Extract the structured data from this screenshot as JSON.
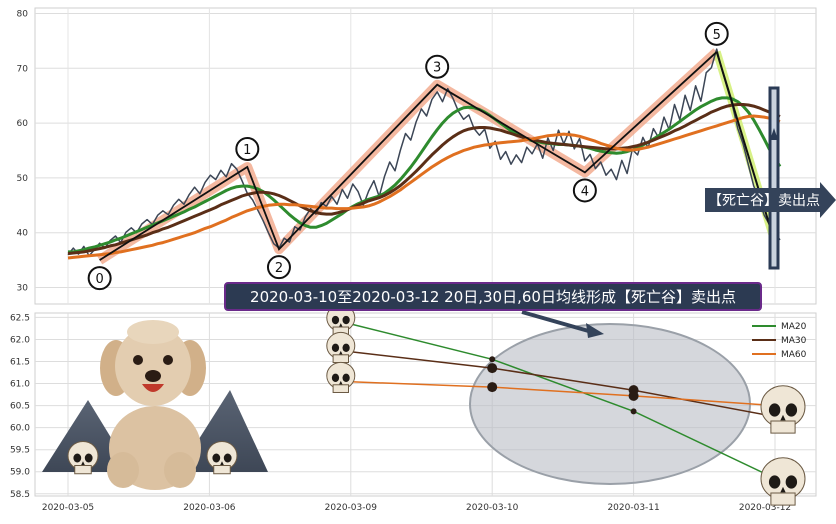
{
  "chart_data": [
    {
      "type": "line",
      "panel": "top",
      "title": "",
      "xlabel": "",
      "ylabel": "",
      "ylim": [
        27,
        81
      ],
      "yticks": [
        30,
        40,
        50,
        60,
        70,
        80
      ],
      "grid": true,
      "series": [
        {
          "values": [
            36,
            37.2,
            36.1,
            37.5,
            35.8,
            36.9,
            38.1,
            37.2,
            38.6,
            39.4,
            38.2,
            40.1,
            40.9,
            40,
            41.6,
            42.4,
            41.5,
            43.2,
            44,
            43.3,
            45,
            46.1,
            45.2,
            47,
            48.3,
            47.1,
            49.2,
            50.5,
            49.7,
            51.4,
            50.2,
            52.6,
            51.6,
            49.5,
            47.2,
            46,
            44.1,
            42.2,
            40,
            38,
            37.2,
            39,
            38.3,
            41.1,
            40.5,
            42.9,
            44.4,
            43.4,
            45.5,
            44.8,
            46.6,
            45.2,
            47.9,
            46.3,
            48.9,
            47.5,
            45,
            47.6,
            49.5,
            46.6,
            50.2,
            52.9,
            51.3,
            55,
            58.1,
            56.9,
            60.2,
            62.6,
            61.3,
            64.3,
            65.7,
            63.9,
            66.3,
            64.5,
            62.2,
            60.7,
            61.5,
            59,
            57.8,
            58.9,
            55.4,
            56.7,
            53.4,
            54.8,
            52.5,
            54.2,
            52.8,
            55.6,
            54.4,
            56.2,
            53.6,
            57.3,
            55,
            58.7,
            56.2,
            58.5,
            55.3,
            57.2,
            53.1,
            54.3,
            51.7,
            52.9,
            50.5,
            51.6,
            49.7,
            53.2,
            50.8,
            55.2,
            54.2,
            57.4,
            55.5,
            59,
            57.3,
            61.1,
            58.8,
            63.4,
            60.6,
            65.1,
            62.3,
            66.8,
            64,
            69.2,
            70.1,
            73.5,
            69.7,
            66.4,
            63.2,
            59,
            56.2,
            52.4,
            48.6,
            46.1,
            43.2,
            41.5,
            40.1,
            38.7
          ]
        },
        {
          "name": "MA20",
          "values": [
            36.5,
            36.5,
            36.7,
            36.9,
            37.2,
            37.4,
            37.7,
            38,
            38.3,
            38.7,
            39,
            39.4,
            39.8,
            40.2,
            40.6,
            41,
            41.4,
            41.8,
            42.2,
            42.6,
            43,
            43.4,
            43.8,
            44.3,
            44.7,
            45.2,
            45.7,
            46.2,
            46.7,
            47.2,
            47.7,
            48.1,
            48.4,
            48.5,
            48.5,
            48.3,
            48,
            47.5,
            46.8,
            46,
            45.1,
            44.2,
            43.3,
            42.5,
            41.8,
            41.3,
            41,
            41,
            41.3,
            41.7,
            42.3,
            42.9,
            43.5,
            44.2,
            44.8,
            45.3,
            45.7,
            46.1,
            46.4,
            46.7,
            47.2,
            47.9,
            48.7,
            49.7,
            50.8,
            52,
            53.3,
            54.7,
            56.1,
            57.5,
            58.8,
            60,
            61,
            61.8,
            62.4,
            62.8,
            62.9,
            62.8,
            62.5,
            62,
            61.4,
            60.7,
            60,
            59.3,
            58.6,
            58,
            57.5,
            57.1,
            56.8,
            56.6,
            56.4,
            56.3,
            56.2,
            56.1,
            56.1,
            56,
            55.9,
            55.8,
            55.6,
            55.4,
            55.1,
            54.9,
            54.7,
            54.6,
            54.5,
            54.6,
            54.8,
            55.1,
            55.5,
            56,
            56.5,
            57.1,
            57.7,
            58.3,
            58.9,
            59.6,
            60.3,
            61,
            61.7,
            62.4,
            63,
            63.5,
            64,
            64.4,
            64.6,
            64.6,
            64.4,
            63.9,
            63.1,
            62,
            60.6,
            58.9,
            57.1,
            55.2,
            53.6,
            52.1
          ]
        },
        {
          "name": "MA30",
          "values": [
            36.2,
            36.3,
            36.4,
            36.5,
            36.7,
            36.9,
            37.1,
            37.3,
            37.6,
            37.8,
            38.1,
            38.4,
            38.7,
            39,
            39.3,
            39.6,
            40,
            40.3,
            40.7,
            41,
            41.4,
            41.8,
            42.2,
            42.6,
            43,
            43.4,
            43.8,
            44.2,
            44.6,
            45.1,
            45.5,
            45.9,
            46.3,
            46.7,
            47,
            47.2,
            47.4,
            47.4,
            47.3,
            47.1,
            46.8,
            46.4,
            45.9,
            45.4,
            44.9,
            44.4,
            44,
            43.7,
            43.5,
            43.4,
            43.4,
            43.6,
            43.9,
            44.2,
            44.6,
            45,
            45.4,
            45.8,
            46.1,
            46.4,
            46.8,
            47.3,
            47.9,
            48.6,
            49.4,
            50.3,
            51.2,
            52.2,
            53.2,
            54.2,
            55.1,
            56,
            56.8,
            57.5,
            58.1,
            58.6,
            58.9,
            59.1,
            59.2,
            59.2,
            59.1,
            58.9,
            58.7,
            58.4,
            58.1,
            57.8,
            57.5,
            57.2,
            57,
            56.8,
            56.6,
            56.4,
            56.3,
            56.2,
            56.1,
            56,
            55.9,
            55.8,
            55.7,
            55.6,
            55.5,
            55.4,
            55.3,
            55.3,
            55.3,
            55.4,
            55.5,
            55.7,
            55.9,
            56.2,
            56.5,
            56.9,
            57.3,
            57.7,
            58.1,
            58.6,
            59,
            59.5,
            60,
            60.5,
            61,
            61.5,
            62,
            62.4,
            62.8,
            63.1,
            63.3,
            63.4,
            63.4,
            63.3,
            63.1,
            62.8,
            62.4,
            62,
            61.6,
            61.2
          ]
        },
        {
          "name": "MA60",
          "values": [
            35.4,
            35.5,
            35.6,
            35.7,
            35.8,
            35.9,
            36,
            36.1,
            36.2,
            36.4,
            36.5,
            36.7,
            36.9,
            37.1,
            37.3,
            37.5,
            37.7,
            38,
            38.2,
            38.5,
            38.8,
            39.1,
            39.4,
            39.7,
            40,
            40.4,
            40.8,
            41.1,
            41.5,
            41.9,
            42.3,
            42.8,
            43.2,
            43.6,
            44,
            44.3,
            44.6,
            44.8,
            45,
            45.1,
            45.2,
            45.2,
            45.1,
            45.1,
            45,
            44.9,
            44.8,
            44.7,
            44.6,
            44.5,
            44.5,
            44.4,
            44.4,
            44.4,
            44.5,
            44.6,
            44.7,
            44.9,
            45.2,
            45.6,
            46.1,
            46.6,
            47.2,
            47.8,
            48.5,
            49.2,
            49.9,
            50.6,
            51.3,
            52,
            52.6,
            53.2,
            53.7,
            54.2,
            54.6,
            55,
            55.3,
            55.6,
            55.8,
            56,
            56.1,
            56.3,
            56.4,
            56.5,
            56.6,
            56.7,
            56.8,
            57,
            57.1,
            57.3,
            57.5,
            57.7,
            57.8,
            57.9,
            58,
            57.9,
            57.8,
            57.6,
            57.3,
            57,
            56.7,
            56.3,
            56,
            55.7,
            55.4,
            55.2,
            55.1,
            55.1,
            55.2,
            55.4,
            55.6,
            55.9,
            56.2,
            56.5,
            56.8,
            57.1,
            57.4,
            57.7,
            58,
            58.3,
            58.6,
            58.9,
            59.2,
            59.5,
            59.8,
            60.1,
            60.4,
            60.7,
            61,
            61.2,
            61.3,
            61.2,
            61.1,
            60.9,
            60.6,
            60.3
          ]
        }
      ],
      "wave_points": [
        {
          "label": "0",
          "value": 35
        },
        {
          "label": "1",
          "value": 52
        },
        {
          "label": "2",
          "value": 37
        },
        {
          "label": "3",
          "value": 67
        },
        {
          "label": "4",
          "value": 51
        },
        {
          "label": "5",
          "value": 73
        }
      ],
      "annotation": "【死亡谷】卖出点",
      "colors": {
        "price": "#3c4656",
        "ma20": "#2e8b2e",
        "ma30": "#5a2e17",
        "ma60": "#e07020",
        "wave": "#111111",
        "halo": "#f0a080",
        "box": "#2a3a55"
      }
    },
    {
      "type": "line",
      "panel": "bottom",
      "title": "",
      "xlabel": "",
      "ylabel": "",
      "categories": [
        "2020-03-05",
        "2020-03-06",
        "2020-03-09",
        "2020-03-10",
        "2020-03-11",
        "2020-03-12"
      ],
      "ylim": [
        58.45,
        62.6
      ],
      "yticks": [
        58.5,
        59.0,
        59.5,
        60.0,
        60.5,
        61.0,
        61.5,
        62.0,
        62.5
      ],
      "grid": true,
      "legend": "top-right",
      "series": [
        {
          "name": "MA20",
          "x": [
            2,
            3,
            4,
            5
          ],
          "values": [
            62.35,
            61.55,
            60.37,
            58.85
          ]
        },
        {
          "name": "MA30",
          "x": [
            2,
            3,
            4,
            5
          ],
          "values": [
            61.72,
            61.35,
            60.85,
            60.25
          ]
        },
        {
          "name": "MA60",
          "x": [
            2,
            3,
            4,
            5
          ],
          "values": [
            61.04,
            60.92,
            60.72,
            60.5
          ]
        }
      ],
      "annotation": "2020-03-10至2020-03-12 20日,30日,60日均线形成【死亡谷】卖出点"
    }
  ]
}
